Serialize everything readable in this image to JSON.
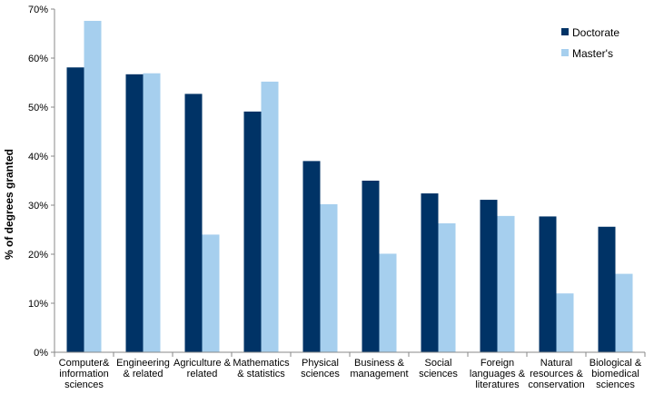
{
  "chart_data": {
    "type": "bar",
    "ylabel": "% of degrees granted",
    "xlabel": "",
    "ylim": [
      0,
      70
    ],
    "yticks": [
      "0%",
      "10%",
      "20%",
      "30%",
      "40%",
      "50%",
      "60%",
      "70%"
    ],
    "ytick_values": [
      0,
      10,
      20,
      30,
      40,
      50,
      60,
      70
    ],
    "grid": false,
    "legend_position": "top-right",
    "categories": [
      "Computer& information sciences",
      "Engineering & related",
      "Agriculture & related",
      "Mathematics & statistics",
      "Physical sciences",
      "Business & management",
      "Social sciences",
      "Foreign languages & literatures",
      "Natural resources & conservation",
      "Biological & biomedical sciences"
    ],
    "category_lines": [
      [
        "Computer&",
        "information",
        "sciences"
      ],
      [
        "Engineering",
        "& related"
      ],
      [
        "Agriculture &",
        "related"
      ],
      [
        "Mathematics",
        "& statistics"
      ],
      [
        "Physical",
        "sciences"
      ],
      [
        "Business &",
        "management"
      ],
      [
        "Social",
        "sciences"
      ],
      [
        "Foreign",
        "languages &",
        "literatures"
      ],
      [
        "Natural",
        "resources &",
        "conservation"
      ],
      [
        "Biological &",
        "biomedical",
        "sciences"
      ]
    ],
    "series": [
      {
        "name": "Doctorate",
        "color": "#003366",
        "values": [
          58.1,
          56.7,
          52.7,
          49.1,
          39.0,
          35.0,
          32.4,
          31.1,
          27.7,
          25.6
        ]
      },
      {
        "name": "Master's",
        "color": "#a6cfee",
        "values": [
          67.6,
          56.9,
          24.0,
          55.2,
          30.2,
          20.1,
          26.3,
          27.8,
          12.0,
          16.0
        ]
      }
    ]
  }
}
